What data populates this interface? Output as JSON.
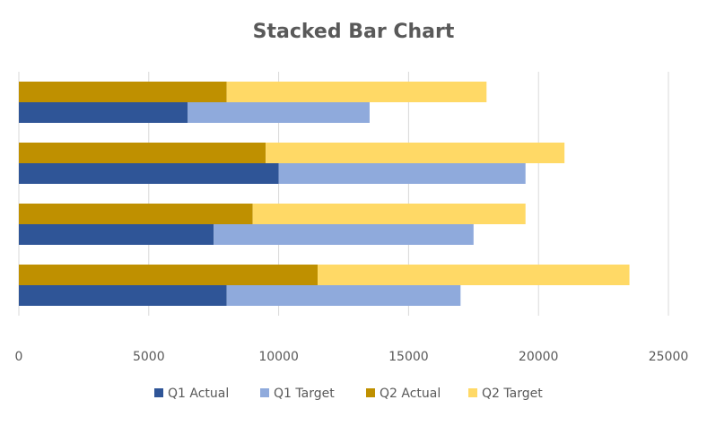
{
  "chart_data": {
    "type": "bar",
    "orientation": "horizontal",
    "stacked": true,
    "title": "Stacked Bar Chart",
    "xlabel": "",
    "ylabel": "",
    "xlim": [
      0,
      25000
    ],
    "xticks": [
      "0",
      "5000",
      "10000",
      "15000",
      "20000",
      "25000"
    ],
    "grid": "vertical",
    "legend_position": "bottom",
    "categories": [
      "",
      "",
      "",
      ""
    ],
    "colors": {
      "Q1 Actual": "#2F5597",
      "Q1 Target": "#8FAADC",
      "Q2 Actual": "#BF9000",
      "Q2 Target": "#FFD966",
      "grid": "#D9D9D9",
      "text": "#595959"
    },
    "groups": [
      "Q1",
      "Q2"
    ],
    "series": [
      {
        "name": "Q1 Actual",
        "stack": "Q1",
        "values": [
          6500,
          10000,
          7500,
          8000
        ]
      },
      {
        "name": "Q1 Target",
        "stack": "Q1",
        "values": [
          7000,
          9500,
          10000,
          9000
        ]
      },
      {
        "name": "Q2 Actual",
        "stack": "Q2",
        "values": [
          8000,
          9500,
          9000,
          11500
        ]
      },
      {
        "name": "Q2 Target",
        "stack": "Q2",
        "values": [
          10000,
          11500,
          10500,
          12000
        ]
      }
    ]
  }
}
